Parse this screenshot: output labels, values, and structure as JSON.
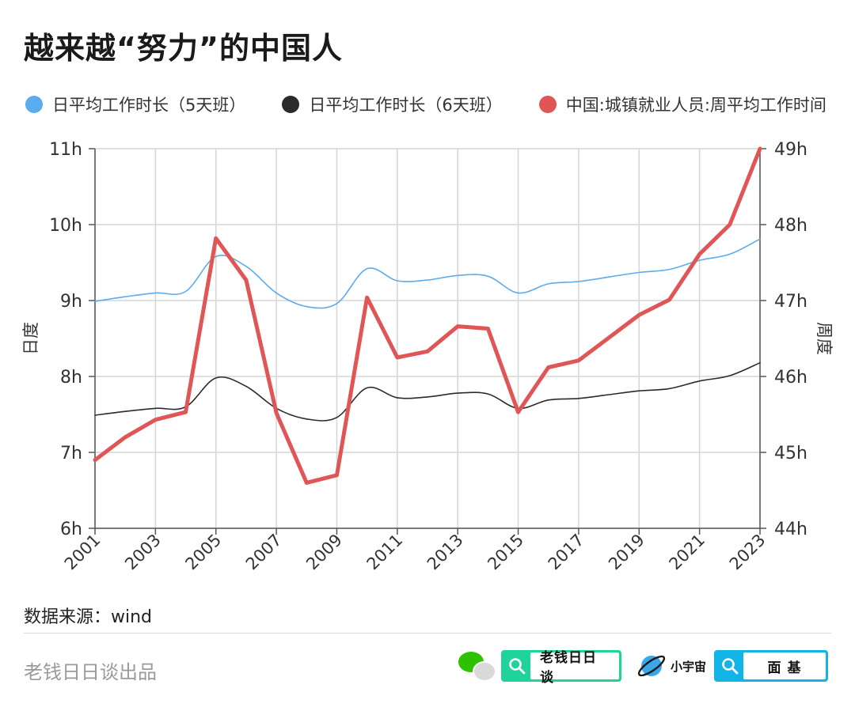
{
  "header": {
    "title": "越来越“努力”的中国人"
  },
  "legend": [
    {
      "label": "日平均工作时长（5天班）",
      "color": "#5aabf0"
    },
    {
      "label": "日平均工作时长（6天班）",
      "color": "#2b2b2b"
    },
    {
      "label": "中国:城镇就业人员:周平均工作时间",
      "color": "#e05555"
    }
  ],
  "footer": {
    "source": "数据来源：wind",
    "producer": "老钱日日谈出品",
    "badge_wechat_label": "老钱日日谈",
    "badge_xiaoyuzhou_name": "小宇宙",
    "badge_xiaoyuzhou_label": "面 基"
  },
  "chart_data": {
    "type": "line",
    "x": [
      2001,
      2002,
      2003,
      2004,
      2005,
      2006,
      2007,
      2008,
      2009,
      2010,
      2011,
      2012,
      2013,
      2014,
      2015,
      2016,
      2017,
      2018,
      2019,
      2020,
      2021,
      2022,
      2023
    ],
    "x_ticks": [
      "2001",
      "2003",
      "2005",
      "2007",
      "2009",
      "2011",
      "2013",
      "2015",
      "2017",
      "2019",
      "2021",
      "2023"
    ],
    "y_left": {
      "label": "日度",
      "lim": [
        6,
        11
      ],
      "ticks": [
        "6h",
        "7h",
        "8h",
        "9h",
        "10h",
        "11h"
      ],
      "tick_values": [
        6,
        7,
        8,
        9,
        10,
        11
      ]
    },
    "y_right": {
      "label": "周度",
      "lim": [
        44,
        49
      ],
      "ticks": [
        "44h",
        "45h",
        "46h",
        "47h",
        "48h",
        "49h"
      ],
      "tick_values": [
        44,
        45,
        46,
        47,
        48,
        49
      ]
    },
    "grid": true,
    "series": [
      {
        "name": "日平均工作时长（5天班）",
        "axis": "left",
        "color": "#5aabf0",
        "width": 1.6,
        "values": [
          8.99,
          9.05,
          9.1,
          9.12,
          9.58,
          9.45,
          9.1,
          8.92,
          8.96,
          9.42,
          9.26,
          9.27,
          9.33,
          9.32,
          9.1,
          9.22,
          9.25,
          9.31,
          9.37,
          9.41,
          9.53,
          9.61,
          9.81
        ]
      },
      {
        "name": "日平均工作时长（6天班）",
        "axis": "left",
        "color": "#2b2b2b",
        "width": 1.6,
        "values": [
          7.49,
          7.54,
          7.58,
          7.6,
          7.98,
          7.87,
          7.58,
          7.44,
          7.46,
          7.85,
          7.72,
          7.73,
          7.78,
          7.77,
          7.58,
          7.69,
          7.71,
          7.76,
          7.81,
          7.84,
          7.94,
          8.01,
          8.18
        ]
      },
      {
        "name": "中国:城镇就业人员:周平均工作时间",
        "axis": "right",
        "color": "#e05555",
        "width": 5,
        "values": [
          44.9,
          45.2,
          45.43,
          45.53,
          47.82,
          47.27,
          45.52,
          44.6,
          44.7,
          47.04,
          46.25,
          46.33,
          46.66,
          46.63,
          45.53,
          46.12,
          46.21,
          46.51,
          46.81,
          47.01,
          47.61,
          48.0,
          49.0
        ]
      }
    ]
  }
}
